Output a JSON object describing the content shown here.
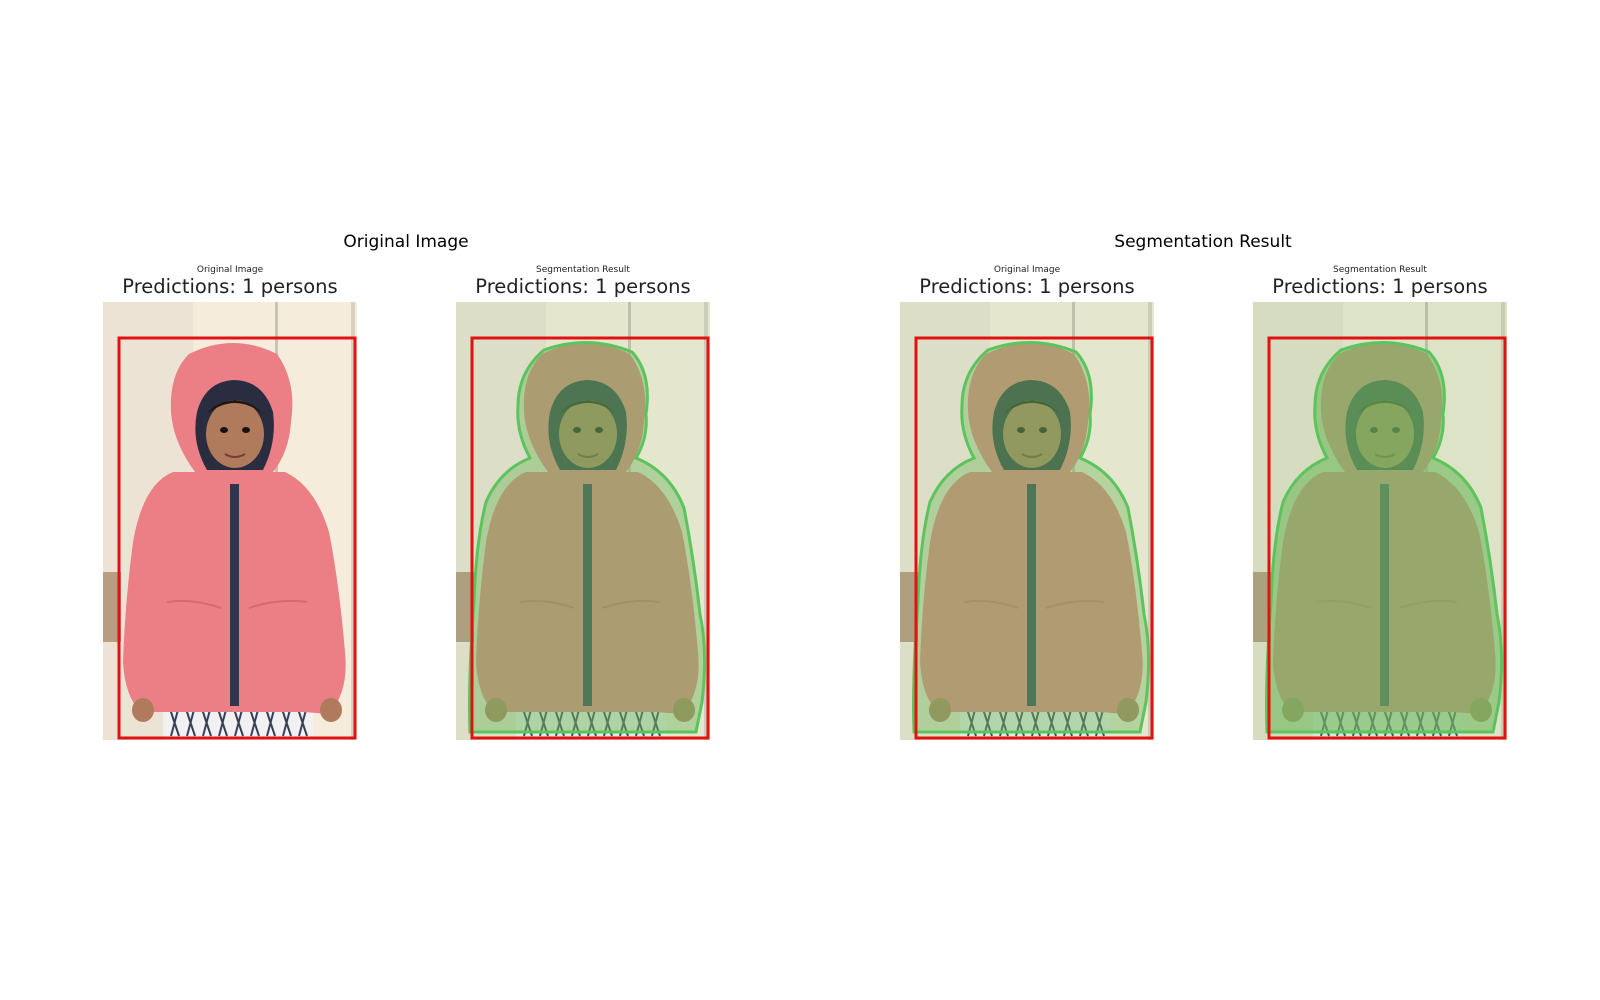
{
  "figure": {
    "left_title": "Original Image",
    "right_title": "Segmentation Result"
  },
  "panels": [
    {
      "mini_title": "Original Image",
      "prediction": "Predictions: 1 persons",
      "variant": "original"
    },
    {
      "mini_title": "Segmentation Result",
      "prediction": "Predictions: 1 persons",
      "variant": "segmented"
    },
    {
      "mini_title": "Original Image",
      "prediction": "Predictions: 1 persons",
      "variant": "segmented-soft"
    },
    {
      "mini_title": "Segmentation Result",
      "prediction": "Predictions: 1 persons",
      "variant": "segmented-strong"
    }
  ],
  "colors": {
    "bbox": "#e31212",
    "mask_outline": "#5cc45c",
    "hoodie": "#ec7f86",
    "wall": "#f5ecdc"
  }
}
